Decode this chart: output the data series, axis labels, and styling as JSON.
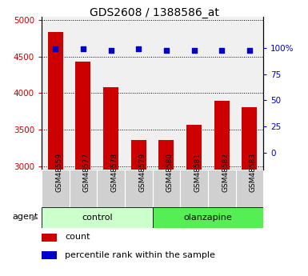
{
  "title": "GDS2608 / 1388586_at",
  "samples": [
    "GSM48559",
    "GSM48577",
    "GSM48578",
    "GSM48579",
    "GSM48580",
    "GSM48581",
    "GSM48582",
    "GSM48583"
  ],
  "counts": [
    4840,
    4430,
    4080,
    3360,
    3360,
    3570,
    3900,
    3810
  ],
  "percentile_ranks": [
    99,
    99,
    98,
    99,
    98,
    98,
    98,
    98
  ],
  "groups": [
    "control",
    "control",
    "control",
    "control",
    "olanzapine",
    "olanzapine",
    "olanzapine",
    "olanzapine"
  ],
  "group_colors": {
    "control": "#ccffcc",
    "olanzapine": "#55ee55"
  },
  "cell_bg": "#d0d0d0",
  "bar_color": "#cc0000",
  "dot_color": "#0000cc",
  "ylim_left": [
    2950,
    5050
  ],
  "yticks_left": [
    3000,
    3500,
    4000,
    4500,
    5000
  ],
  "ylim_right": [
    -16.25,
    130
  ],
  "yticks_right": [
    0,
    25,
    50,
    75,
    100
  ],
  "yticklabels_right": [
    "0",
    "25",
    "50",
    "75",
    "100%"
  ],
  "agent_label": "agent",
  "legend_count": "count",
  "legend_percentile": "percentile rank within the sample",
  "bar_width": 0.55
}
